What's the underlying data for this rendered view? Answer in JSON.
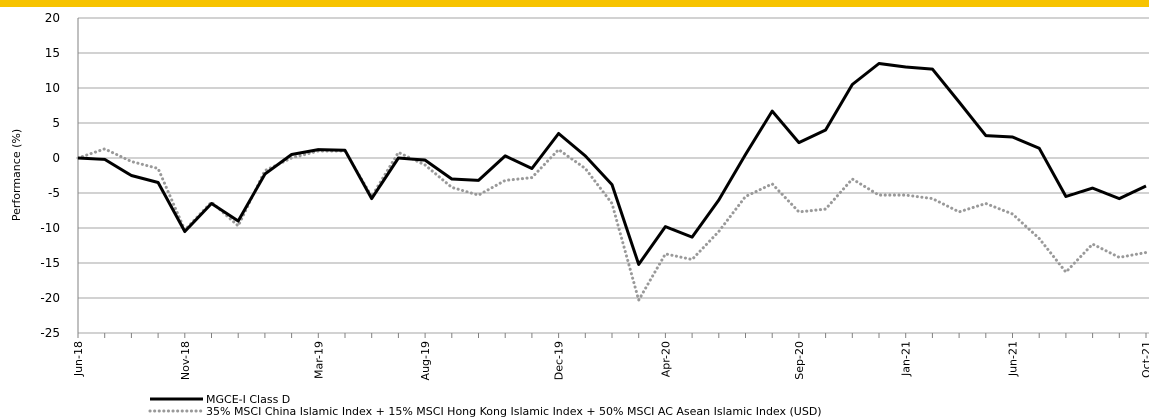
{
  "chart_data": {
    "type": "line",
    "y_label": "Performance (%)",
    "categories": [
      "Jun-18",
      null,
      null,
      null,
      "Nov-18",
      null,
      null,
      null,
      null,
      "Mar-19",
      null,
      null,
      null,
      "Aug-19",
      null,
      null,
      null,
      null,
      "Dec-19",
      null,
      null,
      null,
      "Apr-20",
      null,
      null,
      null,
      null,
      "Sep-20",
      null,
      null,
      null,
      "Jan-21",
      null,
      null,
      null,
      "Jun-21",
      null,
      null,
      null,
      null,
      "Oct-21"
    ],
    "series": [
      {
        "name": "MGCE-I Class D",
        "color": "#000000",
        "style": "solid",
        "values": [
          0,
          -0.2,
          -2.5,
          -3.5,
          -10.5,
          -6.5,
          -9,
          -2.3,
          0.5,
          1.2,
          1.1,
          -5.8,
          0,
          -0.3,
          -3,
          -3.2,
          0.3,
          -1.5,
          3.5,
          0.3,
          -3.8,
          -15.2,
          -9.8,
          -11.3,
          -6,
          0.5,
          6.7,
          2.2,
          4,
          10.5,
          13.5,
          13,
          12.7,
          8,
          3.2,
          3,
          1.4,
          -5.5,
          -4.3,
          -5.8,
          -4
        ]
      },
      {
        "name": "35% MSCI China Islamic Index + 15% MSCI Hong Kong Islamic Index + 50% MSCI AC Asean Islamic Index (USD)",
        "color": "#999999",
        "style": "dotted",
        "values": [
          0,
          1.3,
          -0.5,
          -1.5,
          -10.3,
          -6.3,
          -9.7,
          -1.8,
          0,
          1,
          1,
          -5.5,
          0.8,
          -1,
          -4.2,
          -5.3,
          -3.2,
          -2.8,
          1.2,
          -1.5,
          -6.5,
          -20.3,
          -13.7,
          -14.5,
          -10.5,
          -5.5,
          -3.7,
          -7.7,
          -7.3,
          -3,
          -5.3,
          -5.3,
          -5.8,
          -7.7,
          -6.5,
          -8,
          -11.5,
          -16.3,
          -12.3,
          -14.2,
          -13.5
        ]
      }
    ],
    "ylim": [
      -25,
      20
    ],
    "yticks": [
      -25,
      -20,
      -15,
      -10,
      -5,
      0,
      5,
      10,
      15,
      20
    ],
    "grid": true
  }
}
